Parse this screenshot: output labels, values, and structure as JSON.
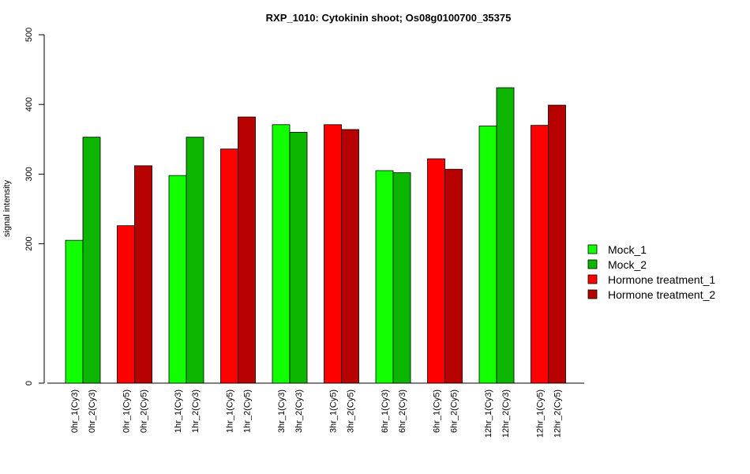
{
  "chart_data": {
    "type": "bar",
    "title": "RXP_1010: Cytokinin shoot; Os08g0100700_35375",
    "xlabel": "",
    "ylabel": "signal intensity",
    "yticks": [
      0,
      200,
      300,
      400,
      500
    ],
    "ylim": [
      0,
      500
    ],
    "grid": false,
    "legend_position": "right",
    "colors": {
      "Mock_1": "#11ff00",
      "Mock_2": "#0bb500",
      "Hormone treatment_1": "#ff0000",
      "Hormone treatment_2": "#b70000"
    },
    "legend": [
      "Mock_1",
      "Mock_2",
      "Hormone treatment_1",
      "Hormone treatment_2"
    ],
    "groups": [
      {
        "bars": [
          {
            "label": "0hr_1(Cy3)",
            "series": "Mock_1",
            "value": 205
          },
          {
            "label": "0hr_2(Cy3)",
            "series": "Mock_2",
            "value": 353
          }
        ]
      },
      {
        "bars": [
          {
            "label": "0hr_1(Cy5)",
            "series": "Hormone treatment_1",
            "value": 226
          },
          {
            "label": "0hr_2(Cy5)",
            "series": "Hormone treatment_2",
            "value": 312
          }
        ]
      },
      {
        "bars": [
          {
            "label": "1hr_1(Cy3)",
            "series": "Mock_1",
            "value": 298
          },
          {
            "label": "1hr_2(Cy3)",
            "series": "Mock_2",
            "value": 353
          }
        ]
      },
      {
        "bars": [
          {
            "label": "1hr_1(Cy5)",
            "series": "Hormone treatment_1",
            "value": 336
          },
          {
            "label": "1hr_2(Cy5)",
            "series": "Hormone treatment_2",
            "value": 382
          }
        ]
      },
      {
        "bars": [
          {
            "label": "3hr_1(Cy3)",
            "series": "Mock_1",
            "value": 371
          },
          {
            "label": "3hr_2(Cy3)",
            "series": "Mock_2",
            "value": 360
          }
        ]
      },
      {
        "bars": [
          {
            "label": "3hr_1(Cy5)",
            "series": "Hormone treatment_1",
            "value": 371
          },
          {
            "label": "3hr_2(Cy5)",
            "series": "Hormone treatment_2",
            "value": 364
          }
        ]
      },
      {
        "bars": [
          {
            "label": "6hr_1(Cy3)",
            "series": "Mock_1",
            "value": 305
          },
          {
            "label": "6hr_2(Cy3)",
            "series": "Mock_2",
            "value": 302
          }
        ]
      },
      {
        "bars": [
          {
            "label": "6hr_1(Cy5)",
            "series": "Hormone treatment_1",
            "value": 322
          },
          {
            "label": "6hr_2(Cy5)",
            "series": "Hormone treatment_2",
            "value": 307
          }
        ]
      },
      {
        "bars": [
          {
            "label": "12hr_1(Cy3)",
            "series": "Mock_1",
            "value": 369
          },
          {
            "label": "12hr_2(Cy3)",
            "series": "Mock_2",
            "value": 424
          }
        ]
      },
      {
        "bars": [
          {
            "label": "12hr_1(Cy5)",
            "series": "Hormone treatment_1",
            "value": 370
          },
          {
            "label": "12hr_2(Cy5)",
            "series": "Hormone treatment_2",
            "value": 399
          }
        ]
      }
    ]
  }
}
